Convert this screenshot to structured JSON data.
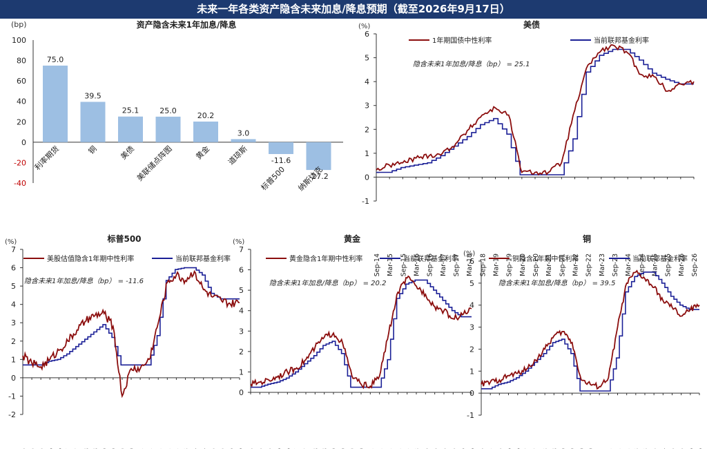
{
  "header": {
    "title": "未来一年各类资产隐含未来加息/降息预期（截至2026年9月17日）"
  },
  "colors": {
    "banner": "#1d3a70",
    "bar": "#9dbfe3",
    "red": "#8b0d0d",
    "navy": "#1a1f96"
  },
  "chart_data": [
    {
      "type": "bar",
      "title": "资产隐含未来1年加息/降息",
      "unit_label": "(bp)",
      "categories": [
        "利率期货",
        "铜",
        "美债",
        "美联储点阵图",
        "黄金",
        "道琼斯",
        "标普500",
        "纳斯达克"
      ],
      "values": [
        75.0,
        39.5,
        25.1,
        25.0,
        20.2,
        3.0,
        -11.6,
        -27.2
      ],
      "value_labels": [
        "75.0",
        "39.5",
        "25.1",
        "25.0",
        "20.2",
        "3.0",
        "-11.6",
        "-27.2"
      ],
      "ylim": [
        -40,
        100
      ],
      "yticks": [
        "100",
        "80",
        "60",
        "40",
        "20",
        "0",
        "-20",
        "-40"
      ]
    },
    {
      "type": "line",
      "title": "美债",
      "unit_label": "(%)",
      "annotation": "隐含未来1年加息/降息（bp） = 25.1",
      "ylim": [
        -1,
        6
      ],
      "yticks": [
        "6",
        "5",
        "4",
        "3",
        "2",
        "1",
        "0",
        "-1"
      ],
      "xticks": [
        "Sep-14",
        "Mar-15",
        "Sep-15",
        "Mar-16",
        "Sep-16",
        "Mar-17",
        "Sep-17",
        "Mar-18",
        "Sep-18",
        "Mar-19",
        "Sep-19",
        "Mar-20",
        "Sep-20",
        "Mar-21",
        "Sep-21",
        "Mar-22",
        "Sep-22",
        "Mar-23",
        "Sep-23",
        "Mar-24",
        "Sep-24",
        "Mar-25",
        "Sep-25",
        "Mar-26",
        "Sep-26"
      ],
      "series": [
        {
          "name": "1年期国债中性利率",
          "color": "#8b0d0d",
          "points": [
            [
              0,
              0.3
            ],
            [
              1,
              0.5
            ],
            [
              2,
              0.6
            ],
            [
              3,
              0.8
            ],
            [
              4,
              0.9
            ],
            [
              5,
              1.0
            ],
            [
              6,
              1.4
            ],
            [
              7,
              2.0
            ],
            [
              8,
              2.6
            ],
            [
              9,
              2.9
            ],
            [
              10,
              2.6
            ],
            [
              11,
              0.2
            ],
            [
              12,
              0.2
            ],
            [
              13,
              0.2
            ],
            [
              14,
              0.6
            ],
            [
              15,
              2.8
            ],
            [
              16,
              4.7
            ],
            [
              17,
              5.3
            ],
            [
              18,
              5.5
            ],
            [
              19,
              5.2
            ],
            [
              20,
              4.3
            ],
            [
              21,
              4.2
            ],
            [
              22,
              3.6
            ],
            [
              23,
              3.9
            ],
            [
              24,
              4.0
            ]
          ]
        },
        {
          "name": "当前联邦基金利率",
          "color": "#1a1f96",
          "points": [
            [
              0,
              0.2
            ],
            [
              1,
              0.2
            ],
            [
              2,
              0.4
            ],
            [
              3,
              0.5
            ],
            [
              4,
              0.6
            ],
            [
              5,
              0.9
            ],
            [
              6,
              1.3
            ],
            [
              7,
              1.7
            ],
            [
              8,
              2.2
            ],
            [
              9,
              2.45
            ],
            [
              10,
              1.8
            ],
            [
              11,
              0.1
            ],
            [
              12,
              0.1
            ],
            [
              13,
              0.1
            ],
            [
              14,
              0.1
            ],
            [
              15,
              1.6
            ],
            [
              16,
              4.4
            ],
            [
              17,
              5.1
            ],
            [
              18,
              5.35
            ],
            [
              19,
              5.35
            ],
            [
              20,
              4.9
            ],
            [
              21,
              4.35
            ],
            [
              22,
              4.1
            ],
            [
              23,
              3.9
            ],
            [
              24,
              3.9
            ]
          ]
        }
      ]
    },
    {
      "type": "line",
      "title": "标普500",
      "unit_label": "(%)",
      "annotation": "隐含未来1年加息/降息（bp） = -11.6",
      "ylim": [
        -2,
        7
      ],
      "yticks": [
        "7",
        "6",
        "5",
        "4",
        "3",
        "2",
        "1",
        "0",
        "-1",
        "-2"
      ],
      "xticks": [
        "Sep-14",
        "Mar-15",
        "Sep-15",
        "Mar-16",
        "Sep-16",
        "Mar-17",
        "Sep-17",
        "Mar-18",
        "Sep-18",
        "Mar-19",
        "Sep-19",
        "Mar-20",
        "Sep-20",
        "Mar-21",
        "Sep-21",
        "Mar-22",
        "Sep-22",
        "Mar-23",
        "Sep-23",
        "Mar-24",
        "Sep-24",
        "Mar-25",
        "Sep-25",
        "Mar-26",
        "Sep-26"
      ],
      "series": [
        {
          "name": "美股估值隐含1年期中性利率",
          "color": "#8b0d0d",
          "points": [
            [
              0,
              1.2
            ],
            [
              1,
              0.8
            ],
            [
              2,
              0.6
            ],
            [
              3,
              1.0
            ],
            [
              4,
              1.5
            ],
            [
              5,
              2.0
            ],
            [
              6,
              2.6
            ],
            [
              7,
              3.1
            ],
            [
              8,
              3.4
            ],
            [
              9,
              3.5
            ],
            [
              10,
              2.8
            ],
            [
              11,
              -1.0
            ],
            [
              12,
              0.5
            ],
            [
              13,
              0.5
            ],
            [
              14,
              1.0
            ],
            [
              15,
              3.0
            ],
            [
              16,
              5.2
            ],
            [
              17,
              5.6
            ],
            [
              18,
              5.3
            ],
            [
              19,
              5.8
            ],
            [
              20,
              4.8
            ],
            [
              21,
              4.4
            ],
            [
              22,
              4.2
            ],
            [
              23,
              4.0
            ],
            [
              24,
              4.1
            ]
          ]
        },
        {
          "name": "当前联邦基金利率",
          "color": "#1a1f96",
          "points": [
            [
              0,
              0.7
            ],
            [
              1,
              0.7
            ],
            [
              2,
              0.7
            ],
            [
              3,
              0.9
            ],
            [
              4,
              1.0
            ],
            [
              5,
              1.3
            ],
            [
              6,
              1.7
            ],
            [
              7,
              2.1
            ],
            [
              8,
              2.5
            ],
            [
              9,
              2.9
            ],
            [
              10,
              2.2
            ],
            [
              11,
              0.7
            ],
            [
              12,
              0.7
            ],
            [
              13,
              0.7
            ],
            [
              14,
              0.7
            ],
            [
              15,
              2.3
            ],
            [
              16,
              5.3
            ],
            [
              17,
              5.9
            ],
            [
              18,
              6.0
            ],
            [
              19,
              6.0
            ],
            [
              20,
              5.6
            ],
            [
              21,
              4.6
            ],
            [
              22,
              4.3
            ],
            [
              23,
              4.3
            ],
            [
              24,
              4.3
            ]
          ]
        }
      ]
    },
    {
      "type": "line",
      "title": "黄金",
      "unit_label": "(%)",
      "annotation": "隐含未来1年加息/降息（bp） = 20.2",
      "ylim": [
        0,
        7
      ],
      "yticks": [
        "7",
        "6",
        "5",
        "4",
        "3",
        "2",
        "1",
        "0"
      ],
      "xticks": [
        "Sep-14",
        "Mar-15",
        "Sep-15",
        "Mar-16",
        "Sep-16",
        "Mar-17",
        "Sep-17",
        "Mar-18",
        "Sep-18",
        "Mar-19",
        "Sep-19",
        "Mar-20",
        "Sep-20",
        "Mar-21",
        "Sep-21",
        "Mar-22",
        "Sep-22",
        "Mar-23",
        "Sep-23",
        "Mar-24",
        "Sep-24",
        "Mar-25",
        "Sep-25",
        "Mar-26",
        "Sep-26"
      ],
      "series": [
        {
          "name": "黄金隐含1年期中性利率",
          "color": "#8b0d0d",
          "points": [
            [
              0,
              0.4
            ],
            [
              1,
              0.5
            ],
            [
              2,
              0.6
            ],
            [
              3,
              0.8
            ],
            [
              4,
              1.0
            ],
            [
              5,
              1.2
            ],
            [
              6,
              1.6
            ],
            [
              7,
              2.2
            ],
            [
              8,
              2.7
            ],
            [
              9,
              2.9
            ],
            [
              10,
              2.4
            ],
            [
              11,
              0.8
            ],
            [
              12,
              0.4
            ],
            [
              13,
              0.3
            ],
            [
              14,
              0.8
            ],
            [
              15,
              2.9
            ],
            [
              16,
              4.9
            ],
            [
              17,
              5.6
            ],
            [
              18,
              5.2
            ],
            [
              19,
              4.8
            ],
            [
              20,
              4.2
            ],
            [
              21,
              4.0
            ],
            [
              22,
              3.6
            ],
            [
              23,
              3.8
            ],
            [
              24,
              4.1
            ]
          ]
        },
        {
          "name": "当前联邦基金利率",
          "color": "#1a1f96",
          "points": [
            [
              0,
              0.25
            ],
            [
              1,
              0.25
            ],
            [
              2,
              0.4
            ],
            [
              3,
              0.5
            ],
            [
              4,
              0.7
            ],
            [
              5,
              1.0
            ],
            [
              6,
              1.4
            ],
            [
              7,
              1.8
            ],
            [
              8,
              2.3
            ],
            [
              9,
              2.5
            ],
            [
              10,
              1.9
            ],
            [
              11,
              0.25
            ],
            [
              12,
              0.25
            ],
            [
              13,
              0.25
            ],
            [
              14,
              0.25
            ],
            [
              15,
              1.6
            ],
            [
              16,
              4.6
            ],
            [
              17,
              5.3
            ],
            [
              18,
              5.5
            ],
            [
              19,
              5.5
            ],
            [
              20,
              5.0
            ],
            [
              21,
              4.5
            ],
            [
              22,
              4.0
            ],
            [
              23,
              3.7
            ],
            [
              24,
              3.7
            ]
          ]
        }
      ]
    },
    {
      "type": "line",
      "title": "铜",
      "unit_label": "(%)",
      "annotation": "隐含未来1年加息/降息（bp） = 39.5",
      "ylim": [
        -1,
        6
      ],
      "yticks": [
        "6",
        "5",
        "4",
        "3",
        "2",
        "1",
        "0",
        "-1"
      ],
      "xticks": [
        "Sep-14",
        "Mar-15",
        "Sep-15",
        "Mar-16",
        "Sep-16",
        "Mar-17",
        "Sep-17",
        "Mar-18",
        "Sep-18",
        "Mar-19",
        "Sep-19",
        "Mar-20",
        "Sep-20",
        "Mar-21",
        "Sep-21",
        "Mar-22",
        "Sep-22",
        "Mar-23",
        "Sep-23",
        "Mar-24",
        "Sep-24",
        "Mar-25",
        "Sep-25",
        "Mar-26",
        "Sep-26"
      ],
      "series": [
        {
          "name": "铜隐含1年期中性利率",
          "color": "#8b0d0d",
          "points": [
            [
              0,
              0.4
            ],
            [
              1,
              0.5
            ],
            [
              2,
              0.6
            ],
            [
              3,
              0.8
            ],
            [
              4,
              0.9
            ],
            [
              5,
              1.1
            ],
            [
              6,
              1.5
            ],
            [
              7,
              2.0
            ],
            [
              8,
              2.6
            ],
            [
              9,
              2.8
            ],
            [
              10,
              2.3
            ],
            [
              11,
              0.6
            ],
            [
              12,
              0.4
            ],
            [
              13,
              0.3
            ],
            [
              14,
              0.7
            ],
            [
              15,
              3.0
            ],
            [
              16,
              5.0
            ],
            [
              17,
              5.5
            ],
            [
              18,
              5.2
            ],
            [
              19,
              4.8
            ],
            [
              20,
              4.2
            ],
            [
              21,
              3.9
            ],
            [
              22,
              3.5
            ],
            [
              23,
              3.8
            ],
            [
              24,
              4.0
            ]
          ]
        },
        {
          "name": "当前联邦基金利率",
          "color": "#1a1f96",
          "points": [
            [
              0,
              0.2
            ],
            [
              1,
              0.2
            ],
            [
              2,
              0.4
            ],
            [
              3,
              0.5
            ],
            [
              4,
              0.7
            ],
            [
              5,
              1.0
            ],
            [
              6,
              1.4
            ],
            [
              7,
              1.8
            ],
            [
              8,
              2.3
            ],
            [
              9,
              2.45
            ],
            [
              10,
              1.8
            ],
            [
              11,
              0.1
            ],
            [
              12,
              0.1
            ],
            [
              13,
              0.1
            ],
            [
              14,
              0.1
            ],
            [
              15,
              1.6
            ],
            [
              16,
              4.6
            ],
            [
              17,
              5.3
            ],
            [
              18,
              5.5
            ],
            [
              19,
              5.5
            ],
            [
              20,
              5.0
            ],
            [
              21,
              4.4
            ],
            [
              22,
              4.0
            ],
            [
              23,
              3.8
            ],
            [
              24,
              3.8
            ]
          ]
        }
      ]
    }
  ]
}
